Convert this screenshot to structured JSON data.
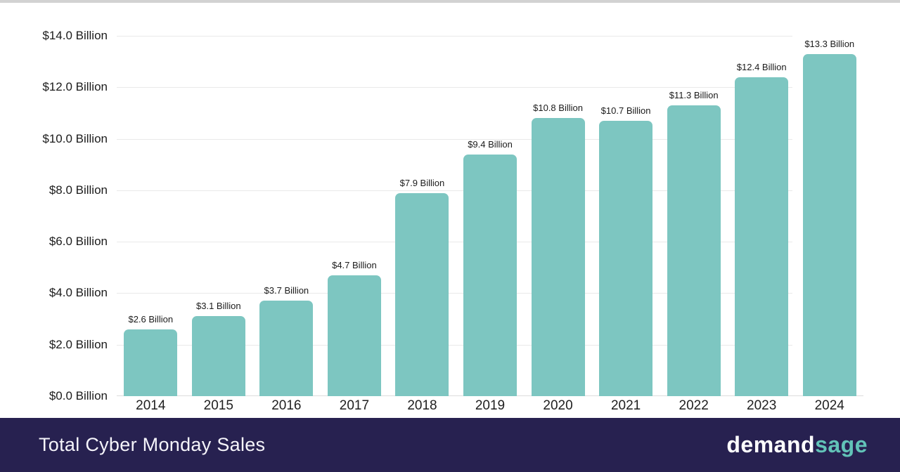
{
  "page": {
    "top_strip_color": "#d2d2d2",
    "background": "#ffffff"
  },
  "chart_data": {
    "type": "bar",
    "title": "Total Cyber Monday Sales",
    "categories": [
      "2014",
      "2015",
      "2016",
      "2017",
      "2018",
      "2019",
      "2020",
      "2021",
      "2022",
      "2023",
      "2024"
    ],
    "values": [
      2.6,
      3.1,
      3.7,
      4.7,
      7.9,
      9.4,
      10.8,
      10.7,
      11.3,
      12.4,
      13.3
    ],
    "bar_labels": [
      "$2.6 Billion",
      "$3.1 Billion",
      "$3.7 Billion",
      "$4.7 Billion",
      "$7.9 Billion",
      "$9.4 Billion",
      "$10.8 Billion",
      "$10.7 Billion",
      "$11.3 Billion",
      "$12.4 Billion",
      "$13.3 Billion"
    ],
    "ytick_values": [
      14,
      12,
      10,
      8,
      6,
      4,
      2,
      0
    ],
    "ytick_labels": [
      "$14.0 Billion",
      "$12.0 Billion",
      "$10.0 Billion",
      "$8.0 Billion",
      "$6.0 Billion",
      "$4.0 Billion",
      "$2.0 Billion",
      "$0.0 Billion"
    ],
    "ylim": [
      0,
      14
    ],
    "xlabel": "",
    "ylabel": "",
    "grid": true,
    "legend": false,
    "bar_color": "#7dc6c1",
    "gridline_color": "#e9e9e9",
    "label_color": "#1b1b1b"
  },
  "footer": {
    "title": "Total Cyber Monday Sales",
    "background": "#272150",
    "logo": {
      "part1": "demand",
      "part2": "sage",
      "part1_color": "#ffffff",
      "part2_color": "#62c3b8"
    }
  }
}
